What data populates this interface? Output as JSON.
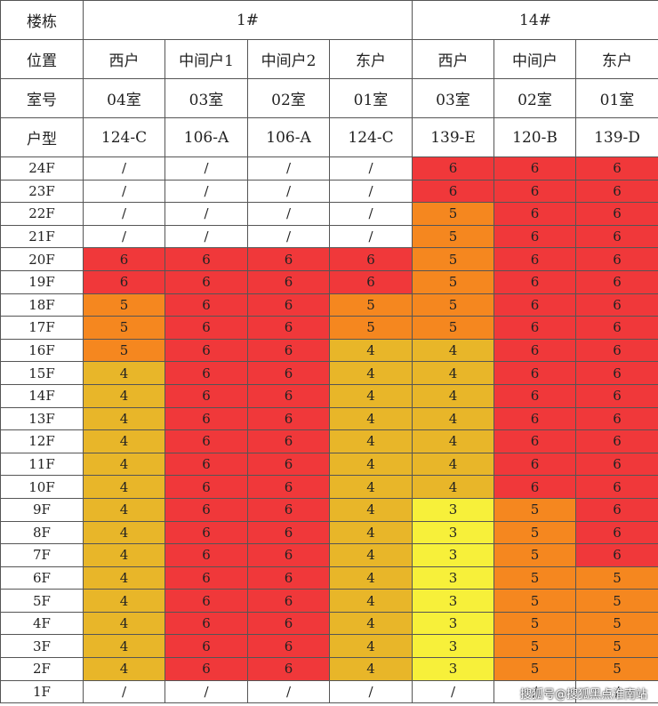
{
  "table": {
    "row_labels": {
      "building": "楼栋",
      "position": "位置",
      "room": "室号",
      "type": "户型"
    },
    "buildings": [
      {
        "name": "1#",
        "span": 4
      },
      {
        "name": "14#",
        "span": 3
      }
    ],
    "units": [
      {
        "position": "西户",
        "room": "04室",
        "type": "124-C"
      },
      {
        "position": "中间户1",
        "room": "03室",
        "type": "106-A"
      },
      {
        "position": "中间户2",
        "room": "02室",
        "type": "106-A"
      },
      {
        "position": "东户",
        "room": "01室",
        "type": "124-C"
      },
      {
        "position": "西户",
        "room": "03室",
        "type": "139-E"
      },
      {
        "position": "中间户",
        "room": "02室",
        "type": "120-B"
      },
      {
        "position": "东户",
        "room": "01室",
        "type": "139-D"
      }
    ],
    "floors": [
      {
        "floor": "24F",
        "values": [
          "/",
          "/",
          "/",
          "/",
          "6",
          "6",
          "6"
        ]
      },
      {
        "floor": "23F",
        "values": [
          "/",
          "/",
          "/",
          "/",
          "6",
          "6",
          "6"
        ]
      },
      {
        "floor": "22F",
        "values": [
          "/",
          "/",
          "/",
          "/",
          "5",
          "6",
          "6"
        ]
      },
      {
        "floor": "21F",
        "values": [
          "/",
          "/",
          "/",
          "/",
          "5",
          "6",
          "6"
        ]
      },
      {
        "floor": "20F",
        "values": [
          "6",
          "6",
          "6",
          "6",
          "5",
          "6",
          "6"
        ]
      },
      {
        "floor": "19F",
        "values": [
          "6",
          "6",
          "6",
          "6",
          "5",
          "6",
          "6"
        ]
      },
      {
        "floor": "18F",
        "values": [
          "5",
          "6",
          "6",
          "5",
          "5",
          "6",
          "6"
        ]
      },
      {
        "floor": "17F",
        "values": [
          "5",
          "6",
          "6",
          "5",
          "5",
          "6",
          "6"
        ]
      },
      {
        "floor": "16F",
        "values": [
          "5",
          "6",
          "6",
          "4",
          "4",
          "6",
          "6"
        ]
      },
      {
        "floor": "15F",
        "values": [
          "4",
          "6",
          "6",
          "4",
          "4",
          "6",
          "6"
        ]
      },
      {
        "floor": "14F",
        "values": [
          "4",
          "6",
          "6",
          "4",
          "4",
          "6",
          "6"
        ]
      },
      {
        "floor": "13F",
        "values": [
          "4",
          "6",
          "6",
          "4",
          "4",
          "6",
          "6"
        ]
      },
      {
        "floor": "12F",
        "values": [
          "4",
          "6",
          "6",
          "4",
          "4",
          "6",
          "6"
        ]
      },
      {
        "floor": "11F",
        "values": [
          "4",
          "6",
          "6",
          "4",
          "4",
          "6",
          "6"
        ]
      },
      {
        "floor": "10F",
        "values": [
          "4",
          "6",
          "6",
          "4",
          "4",
          "6",
          "6"
        ]
      },
      {
        "floor": "9F",
        "values": [
          "4",
          "6",
          "6",
          "4",
          "3",
          "5",
          "6"
        ]
      },
      {
        "floor": "8F",
        "values": [
          "4",
          "6",
          "6",
          "4",
          "3",
          "5",
          "6"
        ]
      },
      {
        "floor": "7F",
        "values": [
          "4",
          "6",
          "6",
          "4",
          "3",
          "5",
          "6"
        ]
      },
      {
        "floor": "6F",
        "values": [
          "4",
          "6",
          "6",
          "4",
          "3",
          "5",
          "5"
        ]
      },
      {
        "floor": "5F",
        "values": [
          "4",
          "6",
          "6",
          "4",
          "3",
          "5",
          "5"
        ]
      },
      {
        "floor": "4F",
        "values": [
          "4",
          "6",
          "6",
          "4",
          "3",
          "5",
          "5"
        ]
      },
      {
        "floor": "3F",
        "values": [
          "4",
          "6",
          "6",
          "4",
          "3",
          "5",
          "5"
        ]
      },
      {
        "floor": "2F",
        "values": [
          "4",
          "6",
          "6",
          "4",
          "3",
          "5",
          "5"
        ]
      },
      {
        "floor": "1F",
        "values": [
          "/",
          "/",
          "/",
          "/",
          "/",
          "/",
          "/"
        ]
      }
    ]
  },
  "colors": {
    "6": "#f0383a",
    "5": "#f5871f",
    "4": "#e8b629",
    "3": "#f7f03a",
    "/": "#ffffff"
  },
  "watermark": "搜狐号@搜狐黑点淮南站"
}
